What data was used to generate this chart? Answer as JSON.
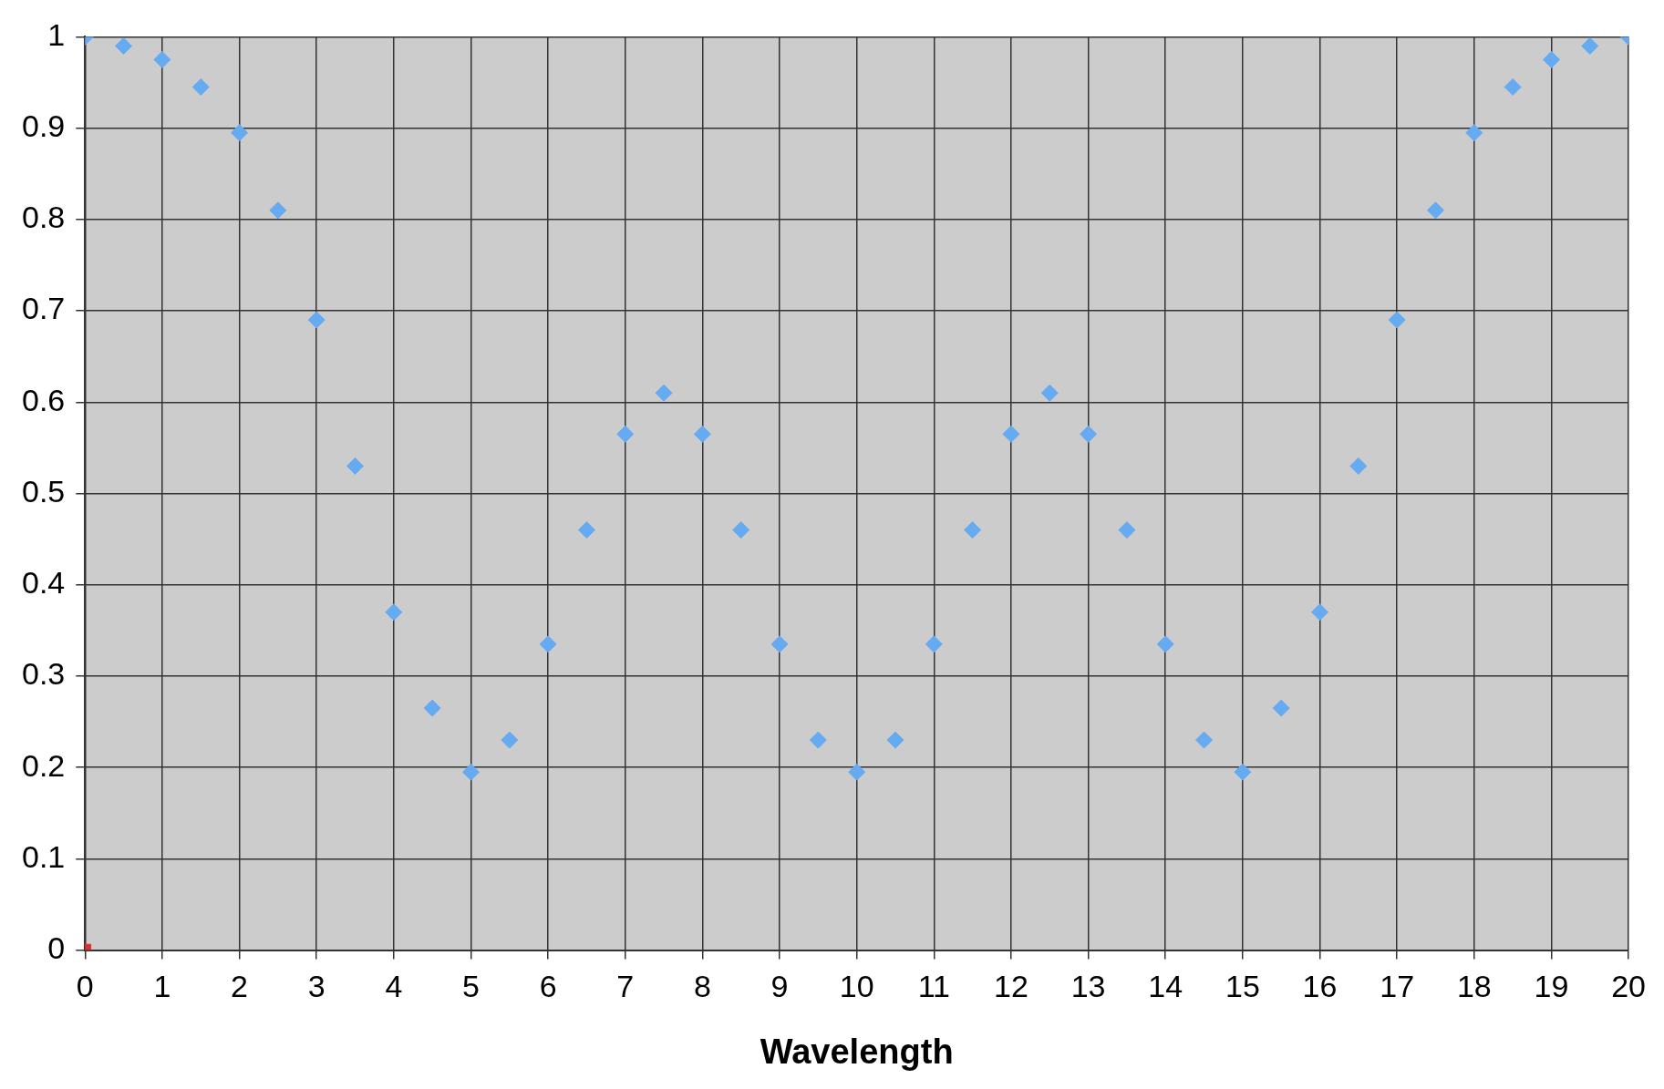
{
  "chart_data": {
    "type": "scatter",
    "xlabel": "Wavelength",
    "xlim": [
      0,
      20
    ],
    "xticks": [
      0,
      1,
      2,
      3,
      4,
      5,
      6,
      7,
      8,
      9,
      10,
      11,
      12,
      13,
      14,
      15,
      16,
      17,
      18,
      19,
      20
    ],
    "ylim": [
      0,
      1
    ],
    "yticks": [
      0,
      0.1,
      0.2,
      0.3,
      0.4,
      0.5,
      0.6,
      0.7,
      0.8,
      0.9,
      1
    ],
    "grid": true,
    "legend": false,
    "series": [
      {
        "color": "#66aaf2",
        "marker": "diamond",
        "x": [
          0,
          0.5,
          1,
          1.5,
          2,
          2.5,
          3,
          3.5,
          4,
          4.5,
          5,
          5.5,
          6,
          6.5,
          7,
          7.5,
          8,
          8.5,
          9,
          9.5,
          10,
          10.5,
          11,
          11.5,
          12,
          12.5,
          13,
          13.5,
          14,
          14.5,
          15,
          15.5,
          16,
          16.5,
          17,
          17.5,
          18,
          18.5,
          19,
          19.5,
          20
        ],
        "values": [
          1,
          0.99,
          0.975,
          0.945,
          0.895,
          0.81,
          0.69,
          0.53,
          0.37,
          0.265,
          0.195,
          0.23,
          0.335,
          0.46,
          0.565,
          0.61,
          0.565,
          0.46,
          0.335,
          0.23,
          0.195,
          0.23,
          0.335,
          0.46,
          0.565,
          0.61,
          0.565,
          0.46,
          0.335,
          0.23,
          0.195,
          0.265,
          0.37,
          0.53,
          0.69,
          0.81,
          0.895,
          0.945,
          0.975,
          0.99,
          1
        ]
      },
      {
        "color": "#e03030",
        "marker": "square",
        "x": [
          0
        ],
        "values": [
          0
        ]
      }
    ]
  }
}
